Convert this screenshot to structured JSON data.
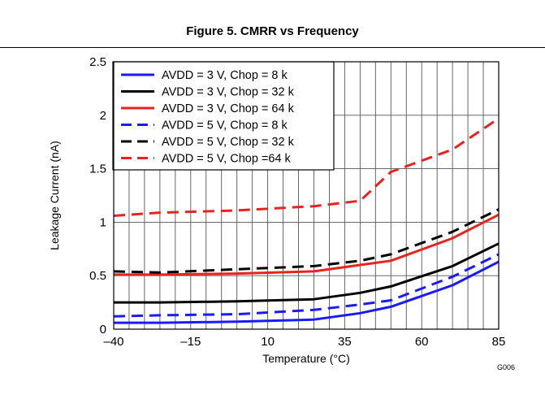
{
  "figure_title": "Figure 5. CMRR vs Frequency",
  "figure_code": "G006",
  "chart_data": {
    "type": "line",
    "xlabel": "Temperature (°C)",
    "ylabel": "Leakage Current (nA)",
    "xlim": [
      -40,
      85
    ],
    "ylim": [
      0,
      2.5
    ],
    "x_ticks": [
      -40,
      -15,
      10,
      35,
      60,
      85
    ],
    "x_tick_labels": [
      "–40",
      "–15",
      "10",
      "35",
      "60",
      "85"
    ],
    "y_ticks": [
      0,
      0.5,
      1,
      1.5,
      2,
      2.5
    ],
    "y_tick_labels": [
      "0",
      "0.5",
      "1",
      "1.5",
      "2",
      "2.5"
    ],
    "x_grid_step": 5,
    "y_grid_step": 0.5,
    "grid": true,
    "legend_position": "top-left",
    "series": [
      {
        "name": "AVDD = 3 V, Chop = 8 k",
        "color": "#1a1aff",
        "dash": "solid",
        "x": [
          -40,
          -25,
          0,
          25,
          40,
          50,
          70,
          85
        ],
        "y": [
          0.06,
          0.06,
          0.07,
          0.09,
          0.15,
          0.21,
          0.41,
          0.63
        ]
      },
      {
        "name": "AVDD = 3 V, Chop = 32 k",
        "color": "#000000",
        "dash": "solid",
        "x": [
          -40,
          -25,
          0,
          25,
          40,
          50,
          70,
          85
        ],
        "y": [
          0.25,
          0.25,
          0.26,
          0.28,
          0.34,
          0.4,
          0.59,
          0.8
        ]
      },
      {
        "name": "AVDD = 3 V, Chop = 64 k",
        "color": "#e8231f",
        "dash": "solid",
        "x": [
          -40,
          -25,
          0,
          25,
          40,
          50,
          70,
          85
        ],
        "y": [
          0.51,
          0.51,
          0.52,
          0.54,
          0.6,
          0.64,
          0.85,
          1.07
        ]
      },
      {
        "name": "AVDD = 5 V, Chop = 8 k",
        "color": "#1a1aff",
        "dash": "dash",
        "x": [
          -40,
          -25,
          0,
          25,
          40,
          50,
          70,
          85
        ],
        "y": [
          0.12,
          0.13,
          0.14,
          0.18,
          0.23,
          0.27,
          0.49,
          0.7
        ]
      },
      {
        "name": "AVDD = 5 V, Chop = 32 k",
        "color": "#000000",
        "dash": "dash",
        "x": [
          -40,
          -25,
          0,
          25,
          40,
          50,
          70,
          85
        ],
        "y": [
          0.54,
          0.53,
          0.56,
          0.59,
          0.64,
          0.7,
          0.91,
          1.12
        ]
      },
      {
        "name": "AVDD = 5 V, Chop =64 k",
        "color": "#e8231f",
        "dash": "dash",
        "x": [
          -40,
          -25,
          0,
          25,
          40,
          50,
          70,
          85
        ],
        "y": [
          1.06,
          1.09,
          1.11,
          1.15,
          1.2,
          1.47,
          1.68,
          1.97
        ]
      }
    ]
  }
}
